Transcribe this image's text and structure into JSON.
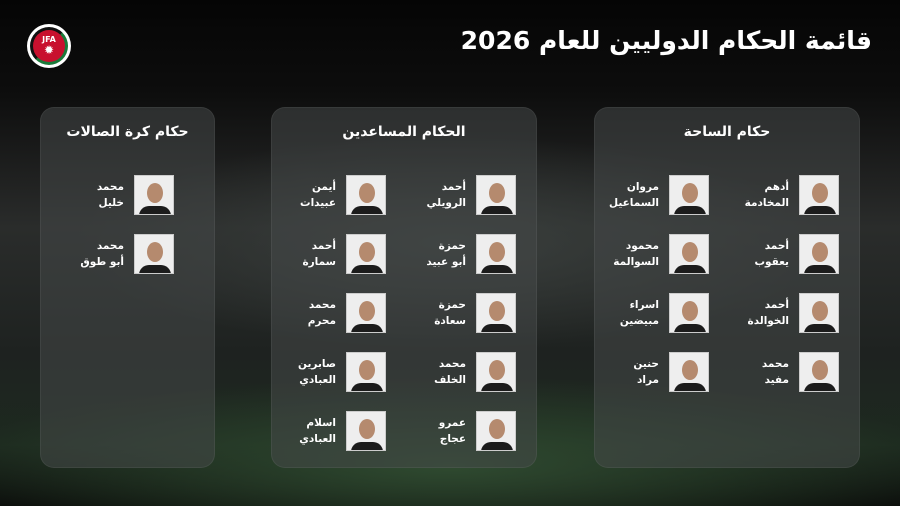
{
  "logo": {
    "text": "JFA"
  },
  "title": "قائمة الحكام الدوليين للعام 2026",
  "panels": [
    {
      "title": "حكام الساحة",
      "refs": [
        {
          "first": "أدهم",
          "last": "المخادمة"
        },
        {
          "first": "مروان",
          "last": "السماعيل"
        },
        {
          "first": "أحمد",
          "last": "يعقوب"
        },
        {
          "first": "محمود",
          "last": "السوالمة"
        },
        {
          "first": "أحمد",
          "last": "الخوالدة"
        },
        {
          "first": "اسراء",
          "last": "مبيضين"
        },
        {
          "first": "محمد",
          "last": "مفيد"
        },
        {
          "first": "حنين",
          "last": "مراد"
        }
      ]
    },
    {
      "title": "الحكام المساعدين",
      "refs": [
        {
          "first": "أحمد",
          "last": "الرويلي"
        },
        {
          "first": "أيمن",
          "last": "عبيدات"
        },
        {
          "first": "حمزة",
          "last": "أبو عبيد"
        },
        {
          "first": "أحمد",
          "last": "سمارة"
        },
        {
          "first": "حمزة",
          "last": "سعادة"
        },
        {
          "first": "محمد",
          "last": "محرم"
        },
        {
          "first": "محمد",
          "last": "الخلف"
        },
        {
          "first": "صابرين",
          "last": "العبادي"
        },
        {
          "first": "عمرو",
          "last": "عجاج"
        },
        {
          "first": "اسلام",
          "last": "العبادي"
        }
      ]
    },
    {
      "title": "حكام كرة الصالات",
      "refs": [
        {
          "first": "محمد",
          "last": "خليل"
        },
        {
          "first": "محمد",
          "last": "أبو طوق"
        }
      ]
    }
  ]
}
